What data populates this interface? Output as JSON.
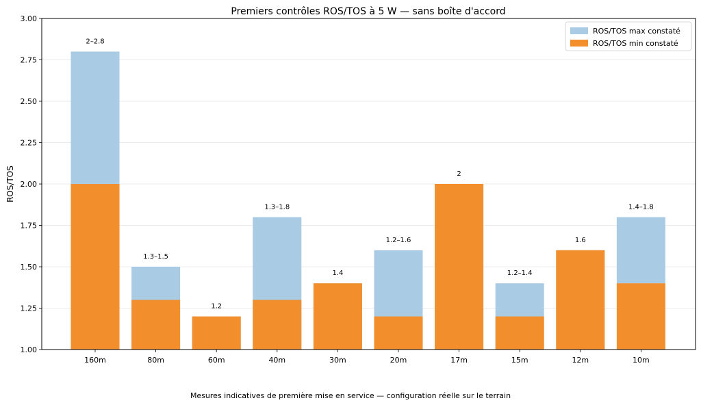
{
  "chart_data": {
    "type": "bar",
    "title": "Premiers contrôles ROS/TOS à 5 W — sans boîte d'accord",
    "xlabel": "",
    "ylabel": "ROS/TOS",
    "ylim": [
      1.0,
      3.0
    ],
    "yticks": [
      "1.00",
      "1.25",
      "1.50",
      "1.75",
      "2.00",
      "2.25",
      "2.50",
      "2.75",
      "3.00"
    ],
    "categories": [
      "160m",
      "80m",
      "60m",
      "40m",
      "30m",
      "20m",
      "17m",
      "15m",
      "12m",
      "10m"
    ],
    "series": [
      {
        "name": "ROS/TOS max constaté",
        "color": "#a9cbe3",
        "values": [
          2.8,
          1.5,
          1.2,
          1.8,
          1.4,
          1.6,
          2.0,
          1.4,
          1.6,
          1.8
        ]
      },
      {
        "name": "ROS/TOS min constaté",
        "color": "#f28e2b",
        "values": [
          2.0,
          1.3,
          1.2,
          1.3,
          1.4,
          1.2,
          2.0,
          1.2,
          1.6,
          1.4
        ]
      }
    ],
    "data_labels": [
      "2–2.8",
      "1.3–1.5",
      "1.2",
      "1.3–1.8",
      "1.4",
      "1.2–1.6",
      "2",
      "1.2–1.4",
      "1.6",
      "1.4–1.8"
    ],
    "grid": "horizontal",
    "legend_position": "top-right"
  },
  "caption": "Mesures indicatives de première mise en service — configuration réelle sur le terrain"
}
